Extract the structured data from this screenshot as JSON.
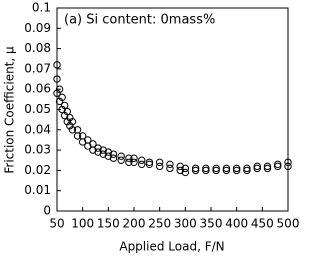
{
  "chart_data": {
    "type": "scatter",
    "annotation": "(a) Si content: 0mass%",
    "x_label": "Applied Load, F/N",
    "y_label": "Friction Coefficient, μ",
    "color": "#000000",
    "grid": false,
    "xlim": [
      50,
      500
    ],
    "xticks": [
      50,
      100,
      150,
      200,
      250,
      300,
      350,
      400,
      450,
      500
    ],
    "ylim": [
      0,
      0.1
    ],
    "yticks": [
      0,
      0.01,
      0.02,
      0.03,
      0.04,
      0.05,
      0.06,
      0.07,
      0.08,
      0.09,
      0.1
    ],
    "x": [
      50,
      50,
      50,
      55,
      55,
      60,
      60,
      65,
      65,
      70,
      70,
      75,
      75,
      80,
      80,
      90,
      90,
      100,
      100,
      110,
      110,
      120,
      120,
      130,
      130,
      140,
      140,
      150,
      150,
      160,
      160,
      175,
      175,
      190,
      190,
      200,
      200,
      215,
      215,
      230,
      230,
      250,
      250,
      270,
      270,
      290,
      290,
      300,
      300,
      320,
      320,
      340,
      340,
      360,
      360,
      380,
      380,
      400,
      400,
      420,
      420,
      440,
      440,
      460,
      460,
      480,
      480,
      500,
      500
    ],
    "y": [
      0.072,
      0.065,
      0.058,
      0.06,
      0.054,
      0.056,
      0.05,
      0.052,
      0.047,
      0.049,
      0.044,
      0.046,
      0.042,
      0.044,
      0.04,
      0.04,
      0.037,
      0.037,
      0.034,
      0.035,
      0.032,
      0.033,
      0.03,
      0.031,
      0.029,
      0.03,
      0.028,
      0.029,
      0.027,
      0.028,
      0.026,
      0.027,
      0.025,
      0.026,
      0.024,
      0.026,
      0.024,
      0.025,
      0.023,
      0.024,
      0.023,
      0.024,
      0.022,
      0.023,
      0.021,
      0.022,
      0.02,
      0.021,
      0.019,
      0.021,
      0.02,
      0.021,
      0.02,
      0.021,
      0.02,
      0.021,
      0.02,
      0.021,
      0.02,
      0.021,
      0.02,
      0.022,
      0.021,
      0.022,
      0.021,
      0.023,
      0.022,
      0.024,
      0.022
    ]
  }
}
